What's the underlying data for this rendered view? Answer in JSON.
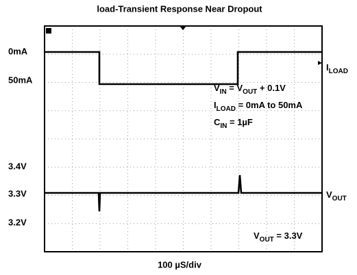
{
  "title": "load-Transient Response  Near Dropout",
  "left_labels": [
    "0mA",
    "50mA",
    "3.4V",
    "3.3V",
    "3.2V"
  ],
  "right_labels": [
    [
      "I",
      "LOAD"
    ],
    [
      "V",
      "OUT"
    ]
  ],
  "annotations": [
    [
      "V",
      "IN",
      " = V",
      "OUT",
      " + 0.1V"
    ],
    [
      "I",
      "LOAD",
      " = 0mA to 50mA"
    ],
    [
      "C",
      "IN",
      " = 1µF"
    ],
    [
      "V",
      "OUT",
      " = 3.3V"
    ]
  ],
  "timebase": "100 µS/div"
}
